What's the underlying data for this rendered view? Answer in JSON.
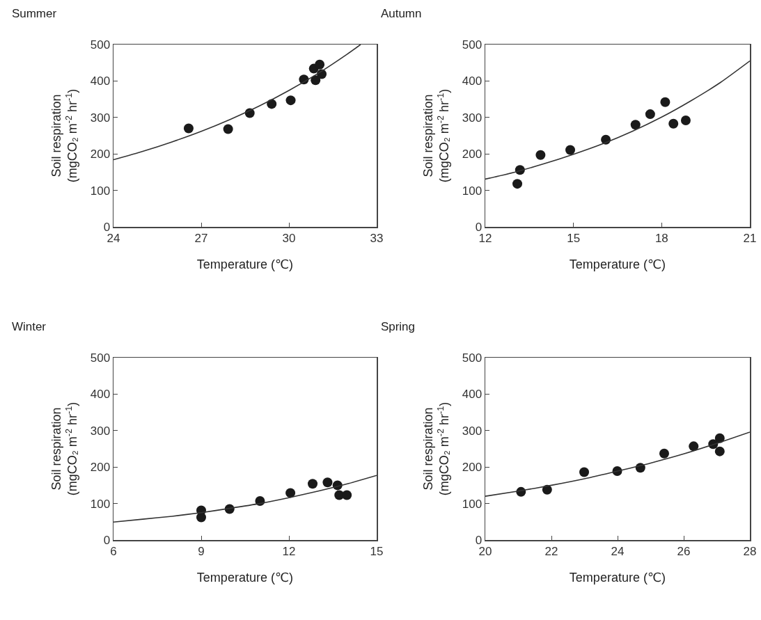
{
  "chart_data": [
    {
      "type": "scatter",
      "title": "Summer",
      "xlabel": "Temperature (℃)",
      "ylabel": "Soil respiration\n(mgCO₂ m$^{-2}$ hr$^{-1}$)",
      "xlim": [
        24,
        33
      ],
      "xticks": [
        24,
        27,
        30,
        33
      ],
      "ylim": [
        0,
        500
      ],
      "yticks": [
        0,
        100,
        200,
        300,
        400,
        500
      ],
      "grid": false,
      "series": [
        {
          "type": "scatter",
          "marker": "circle",
          "color": "#1a1a1a",
          "x": [
            26.57,
            27.92,
            28.66,
            29.41,
            30.06,
            30.51,
            30.85,
            31.05,
            30.91,
            31.12
          ],
          "values": [
            270,
            268,
            312,
            337,
            347,
            404,
            434,
            445,
            402,
            419
          ]
        },
        {
          "type": "line",
          "marker": "none",
          "line_style": "solid",
          "color": "#333333",
          "x": [
            24,
            25,
            26,
            27,
            28,
            29,
            30,
            31,
            32,
            32.45
          ],
          "values": [
            184,
            207,
            233,
            262,
            295,
            332,
            374,
            421,
            474,
            500
          ]
        }
      ]
    },
    {
      "type": "scatter",
      "title": "Autumn",
      "xlabel": "Temperature (℃)",
      "ylabel": "Soil respiration\n(mgCO₂ m$^{-2}$ hr$^{-1}$)",
      "xlim": [
        12,
        21
      ],
      "xticks": [
        12,
        15,
        18,
        21
      ],
      "ylim": [
        0,
        500
      ],
      "yticks": [
        0,
        100,
        200,
        300,
        400,
        500
      ],
      "grid": false,
      "series": [
        {
          "type": "scatter",
          "marker": "circle",
          "color": "#1a1a1a",
          "x": [
            13.09,
            13.18,
            13.88,
            14.89,
            16.1,
            17.11,
            17.61,
            18.12,
            18.4,
            18.82
          ],
          "values": [
            118,
            156,
            197,
            211,
            239,
            280,
            309,
            342,
            283,
            292
          ]
        },
        {
          "type": "line",
          "marker": "none",
          "line_style": "solid",
          "color": "#333333",
          "x": [
            12,
            13,
            14,
            15,
            16,
            17,
            18,
            19,
            20,
            21
          ],
          "values": [
            131,
            150,
            173,
            199,
            228,
            262,
            301,
            346,
            396,
            455
          ]
        }
      ]
    },
    {
      "type": "scatter",
      "title": "Winter",
      "xlabel": "Temperature (℃)",
      "ylabel": "Soil respiration\n(mgCO₂ m$^{-2}$ hr$^{-1}$)",
      "xlim": [
        6,
        15
      ],
      "xticks": [
        6,
        9,
        12,
        15
      ],
      "ylim": [
        0,
        500
      ],
      "yticks": [
        0,
        100,
        200,
        300,
        400,
        500
      ],
      "grid": false,
      "series": [
        {
          "type": "scatter",
          "marker": "circle",
          "color": "#1a1a1a",
          "x": [
            9.0,
            9.0,
            9.97,
            11.01,
            12.05,
            12.81,
            13.32,
            13.66,
            13.72,
            13.98
          ],
          "values": [
            81,
            62,
            85,
            107,
            129,
            154,
            158,
            150,
            123,
            123
          ]
        },
        {
          "type": "line",
          "marker": "none",
          "line_style": "solid",
          "color": "#333333",
          "x": [
            6,
            7,
            8,
            9,
            10,
            11,
            12,
            13,
            14,
            15
          ],
          "values": [
            49,
            57,
            65,
            75,
            87,
            100,
            116,
            134,
            154,
            177
          ]
        }
      ]
    },
    {
      "type": "scatter",
      "title": "Spring",
      "xlabel": "Temperature (℃)",
      "ylabel": "Soil respiration\n(mgCO₂ m$^{-2}$ hr$^{-1}$)",
      "xlim": [
        20,
        28
      ],
      "xticks": [
        20,
        22,
        24,
        26,
        28
      ],
      "ylim": [
        0,
        500
      ],
      "yticks": [
        0,
        100,
        200,
        300,
        400,
        500
      ],
      "grid": false,
      "series": [
        {
          "type": "scatter",
          "marker": "circle",
          "color": "#1a1a1a",
          "x": [
            21.08,
            21.87,
            22.99,
            23.99,
            24.69,
            25.41,
            26.3,
            26.89,
            27.09,
            27.09
          ],
          "values": [
            132,
            138,
            186,
            189,
            198,
            237,
            257,
            263,
            279,
            243
          ]
        },
        {
          "type": "line",
          "marker": "none",
          "line_style": "solid",
          "color": "#333333",
          "x": [
            20,
            21,
            22,
            23,
            24,
            25,
            26,
            27,
            28
          ],
          "values": [
            120,
            134,
            150,
            168,
            189,
            211,
            236,
            265,
            296
          ]
        }
      ]
    }
  ]
}
